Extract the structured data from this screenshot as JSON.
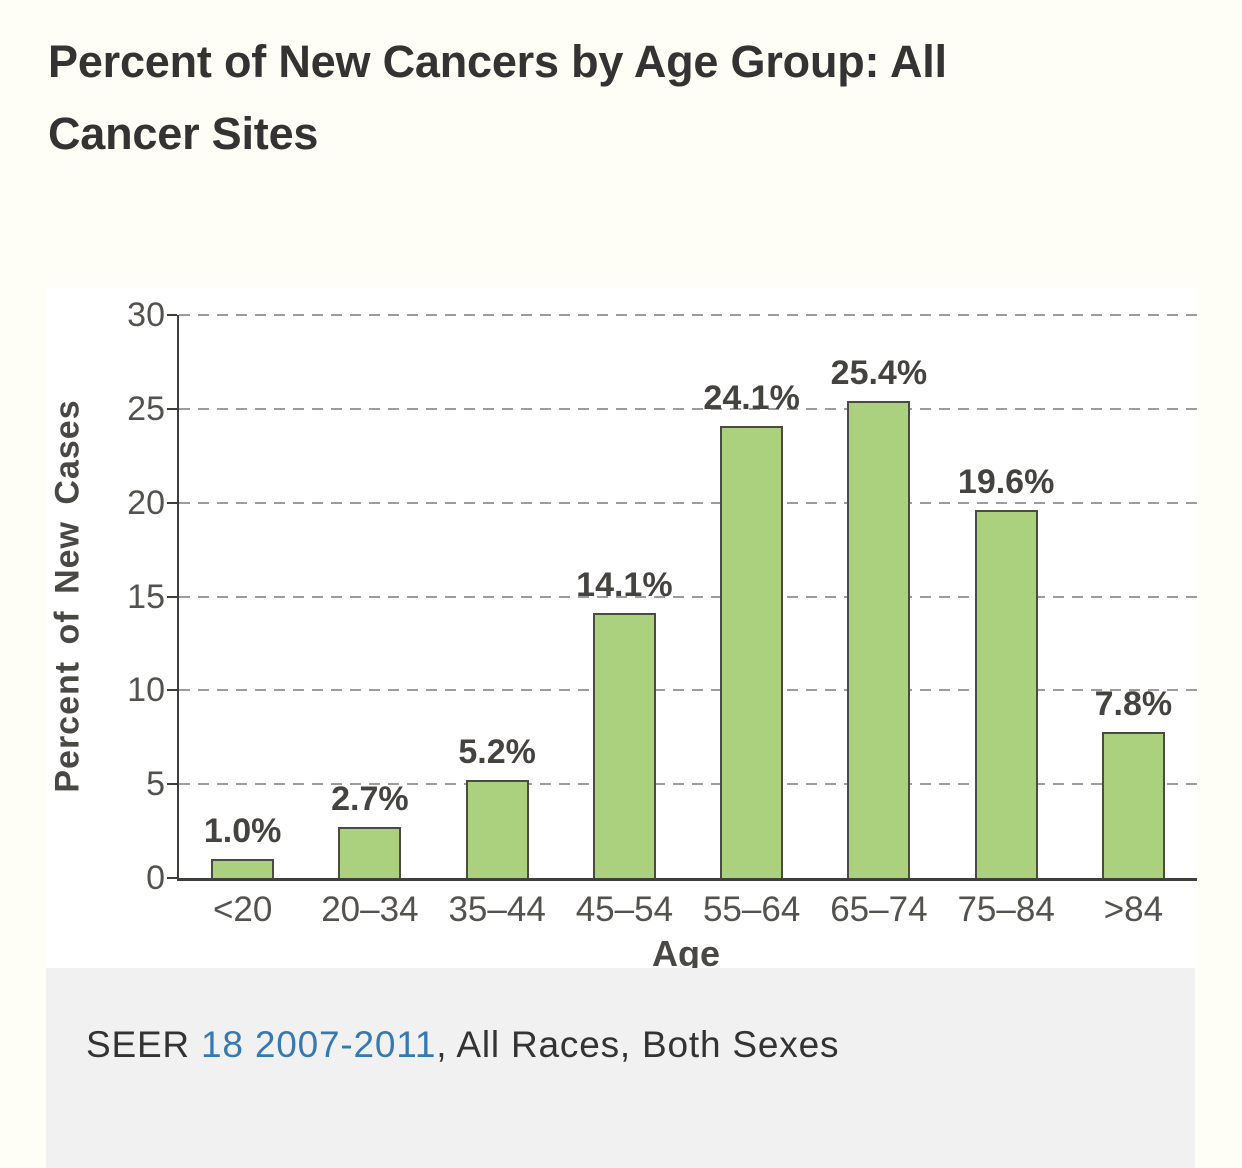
{
  "title": "Percent of New Cancers by Age Group: All Cancer Sites",
  "chart_data": {
    "type": "bar",
    "title": "Percent of New Cancers by Age Group: All Cancer Sites",
    "categories": [
      "<20",
      "20–34",
      "35–44",
      "45–54",
      "55–64",
      "65–74",
      "75–84",
      ">84"
    ],
    "values": [
      1.0,
      2.7,
      5.2,
      14.1,
      24.1,
      25.4,
      19.6,
      7.8
    ],
    "value_labels": [
      "1.0%",
      "2.7%",
      "5.2%",
      "14.1%",
      "24.1%",
      "25.4%",
      "19.6%",
      "7.8%"
    ],
    "xlabel": "Age",
    "ylabel": "Percent of New Cases",
    "ylim": [
      0,
      30
    ],
    "yticks": [
      0,
      5,
      10,
      15,
      20,
      25,
      30
    ],
    "grid": "horizontal-dashed",
    "legend": "none",
    "bar_fill_color": "#abd17e",
    "bar_border_color": "#4b4a43",
    "axis_color": "#403e3b",
    "gridline_color": "#9c9c9c"
  },
  "footer": {
    "prefix": "SEER ",
    "link_text": "18 2007-2011",
    "suffix": ", All Races, Both Sexes"
  },
  "colors": {
    "page_background": "#fffef6",
    "chart_background": "#ffffff",
    "footer_background": "#f1f1f2",
    "title_text": "#333333",
    "link_text": "#3679b2"
  }
}
